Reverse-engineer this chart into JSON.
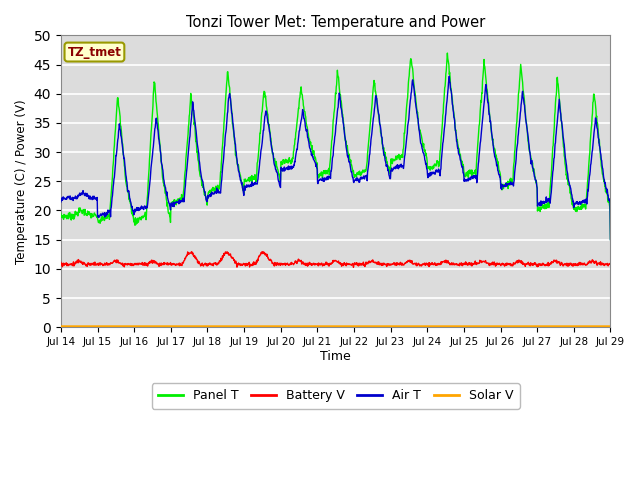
{
  "title": "Tonzi Tower Met: Temperature and Power",
  "xlabel": "Time",
  "ylabel": "Temperature (C) / Power (V)",
  "ylim": [
    0,
    50
  ],
  "yticks": [
    0,
    5,
    10,
    15,
    20,
    25,
    30,
    35,
    40,
    45,
    50
  ],
  "xtick_labels": [
    "Jul 14",
    "Jul 15",
    "Jul 16",
    "Jul 17",
    "Jul 18",
    "Jul 19",
    "Jul 20",
    "Jul 21",
    "Jul 22",
    "Jul 23",
    "Jul 24",
    "Jul 25",
    "Jul 26",
    "Jul 27",
    "Jul 28",
    "Jul 29"
  ],
  "annotation_text": "TZ_tmet",
  "annotation_color": "#8B0000",
  "annotation_bg": "#FFFFCC",
  "annotation_border": "#999900",
  "colors": {
    "panel_t": "#00EE00",
    "battery_v": "#FF0000",
    "air_t": "#0000CC",
    "solar_v": "#FFA500"
  },
  "legend_labels": [
    "Panel T",
    "Battery V",
    "Air T",
    "Solar V"
  ],
  "plot_bg": "#DCDCDC",
  "fig_bg": "#FFFFFF",
  "grid_color": "#FFFFFF"
}
